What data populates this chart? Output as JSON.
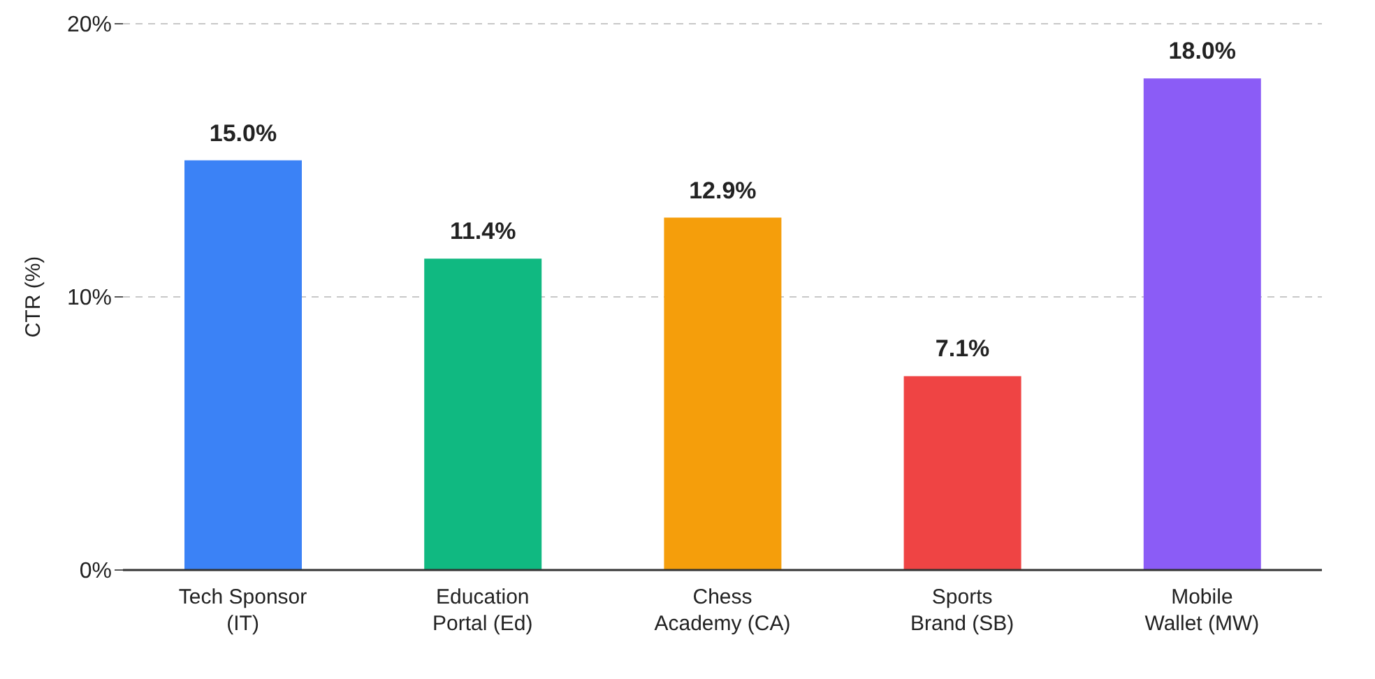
{
  "chart_data": {
    "type": "bar",
    "ylabel": "CTR (%)",
    "categories": [
      "Tech Sponsor\n(IT)",
      "Education\nPortal (Ed)",
      "Chess\nAcademy (CA)",
      "Sports\nBrand (SB)",
      "Mobile\nWallet (MW)"
    ],
    "values": [
      15.0,
      11.4,
      12.9,
      7.1,
      18.0
    ],
    "colors": [
      "#3b82f6",
      "#10b981",
      "#f59e0b",
      "#ef4444",
      "#8b5cf6"
    ],
    "value_labels": [
      "15.0%",
      "11.4%",
      "12.9%",
      "7.1%",
      "18.0%"
    ],
    "ylim": [
      0,
      20
    ],
    "yticks": [
      {
        "value": 0,
        "label": "0%"
      },
      {
        "value": 10,
        "label": "10%"
      },
      {
        "value": 20,
        "label": "20%"
      }
    ],
    "grid": "y"
  }
}
